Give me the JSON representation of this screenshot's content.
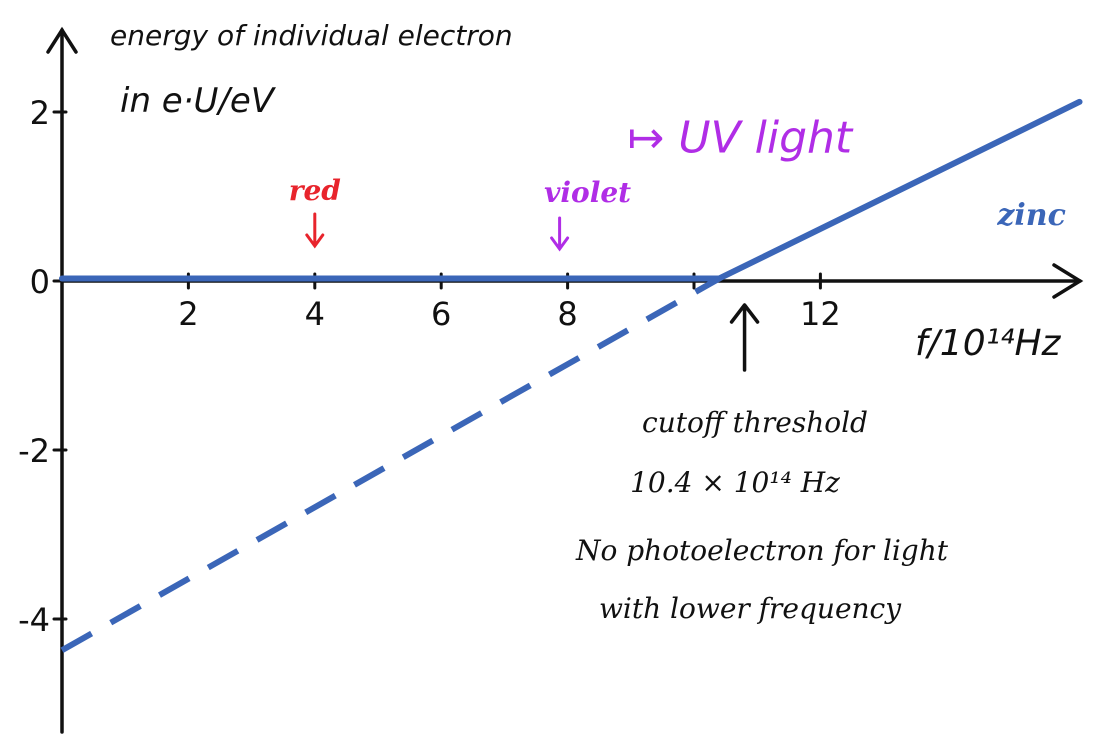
{
  "chart_data": {
    "type": "line",
    "ylabel_line1": "energy of individual electron",
    "ylabel_line2": "in e·U/eV",
    "xlabel": "f/10¹⁴Hz",
    "xlim": [
      0,
      16.5
    ],
    "ylim": [
      -5.3,
      3.0
    ],
    "x_ticks": [
      2,
      4,
      6,
      8,
      10,
      12
    ],
    "x_tick_labels": [
      "2",
      "4",
      "6",
      "8",
      "",
      "12"
    ],
    "y_ticks": [
      -4,
      -2,
      0,
      2
    ],
    "y_tick_labels": [
      "-4",
      "-2",
      "0",
      "2"
    ],
    "series": [
      {
        "name": "zinc",
        "color": "#3b66b8",
        "segments": [
          {
            "style": "solid",
            "points": [
              [
                0,
                0.03
              ],
              [
                10.4,
                0.03
              ]
            ]
          },
          {
            "style": "solid",
            "points": [
              [
                10.4,
                0.03
              ],
              [
                16.1,
                2.12
              ]
            ]
          },
          {
            "style": "dashed",
            "points": [
              [
                0,
                -4.37
              ],
              [
                10.4,
                0.03
              ]
            ]
          }
        ]
      }
    ],
    "annotations": {
      "uv": {
        "text": "↦ UV light",
        "color": "#b02de6",
        "x": 11.4,
        "y": 1.9
      },
      "red": {
        "text": "red",
        "color": "#e8242c",
        "x": 4.0,
        "y": 1.0
      },
      "violet": {
        "text": "violet",
        "color": "#b02de6",
        "x": 8.0,
        "y": 0.95
      },
      "zinc": {
        "text": "zinc",
        "color": "#3b66b8",
        "x": 14.8,
        "y": 0.78
      },
      "cutoff": {
        "lines": [
          "cutoff threshold",
          "10.4 × 10¹⁴ Hz",
          "No photoelectron for light",
          "with lower frequency"
        ],
        "arrow_x": 10.8
      }
    }
  }
}
